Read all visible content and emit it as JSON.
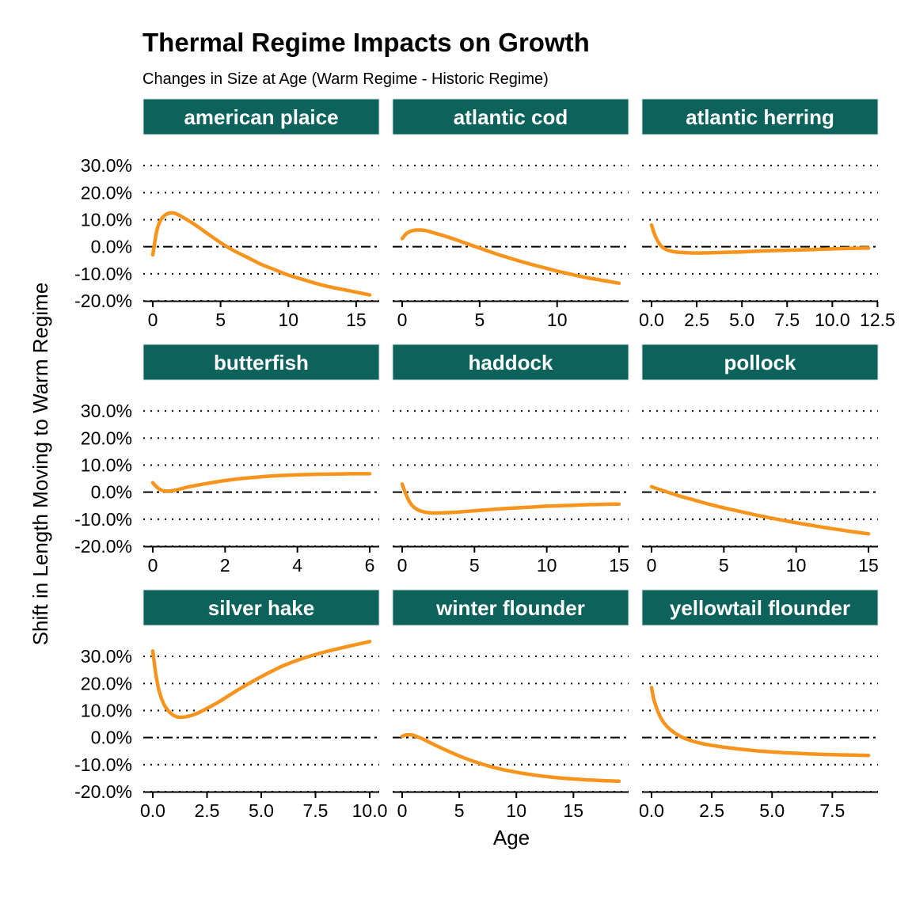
{
  "chart_data": {
    "type": "line",
    "title": "Thermal Regime Impacts on Growth",
    "subtitle": "Changes in Size at Age (Warm Regime - Historic Regime)",
    "xlabel": "Age",
    "ylabel": "Shift in Length Moving to Warm Regime",
    "y_unit": "percent",
    "ylim": [
      -20,
      40
    ],
    "y_ticks": [
      -20,
      -10,
      0,
      10,
      20,
      30
    ],
    "y_tick_labels": [
      "-20.0%",
      "-10.0%",
      "0.0%",
      "10.0%",
      "20.0%",
      "30.0%"
    ],
    "gridlines": "dotted horizontal",
    "reference_line": 0,
    "line_color": "#F7941D",
    "strip_color": "#0D635B",
    "panels": [
      {
        "name": "american plaice",
        "xlim": [
          0,
          16
        ],
        "x_ticks": [
          0,
          5,
          10,
          15
        ],
        "x_tick_labels": [
          "0",
          "5",
          "10",
          "15"
        ],
        "x": [
          0,
          0.3,
          0.6,
          1,
          1.5,
          2,
          3,
          4,
          5,
          6,
          7,
          8,
          9,
          10,
          11,
          12,
          13,
          14,
          15,
          16
        ],
        "y": [
          -3,
          6,
          10,
          12,
          12.5,
          11.5,
          8.5,
          5,
          1.5,
          -1.5,
          -4,
          -6.5,
          -8.5,
          -10.5,
          -12,
          -13.5,
          -14.8,
          -15.8,
          -16.8,
          -17.8
        ]
      },
      {
        "name": "atlantic cod",
        "xlim": [
          0,
          14
        ],
        "x_ticks": [
          0,
          5,
          10
        ],
        "x_tick_labels": [
          "0",
          "5",
          "10"
        ],
        "x": [
          0,
          0.3,
          0.7,
          1,
          1.5,
          2,
          3,
          4,
          5,
          6,
          7,
          8,
          9,
          10,
          11,
          12,
          13,
          14
        ],
        "y": [
          3,
          5,
          6,
          6.2,
          6,
          5.2,
          3.5,
          1.5,
          -0.5,
          -2.5,
          -4.3,
          -6,
          -7.5,
          -9,
          -10.3,
          -11.5,
          -12.5,
          -13.5
        ]
      },
      {
        "name": "atlantic herring",
        "xlim": [
          0,
          12
        ],
        "x_ticks": [
          0,
          2.5,
          5,
          7.5,
          10,
          12.5
        ],
        "x_tick_labels": [
          "0.0",
          "2.5",
          "5.0",
          "7.5",
          "10.0",
          "12.5"
        ],
        "x": [
          0,
          0.2,
          0.5,
          0.8,
          1.2,
          1.6,
          2.2,
          3,
          4,
          5,
          6,
          7,
          8,
          9,
          10,
          11,
          12
        ],
        "y": [
          8,
          4,
          0.5,
          -1,
          -1.8,
          -2.1,
          -2.3,
          -2.3,
          -2.1,
          -1.9,
          -1.6,
          -1.4,
          -1.2,
          -1,
          -0.8,
          -0.6,
          -0.5
        ]
      },
      {
        "name": "butterfish",
        "xlim": [
          0,
          6
        ],
        "x_ticks": [
          0,
          2,
          4,
          6
        ],
        "x_tick_labels": [
          "0",
          "2",
          "4",
          "6"
        ],
        "x": [
          0,
          0.1,
          0.2,
          0.3,
          0.45,
          0.6,
          0.8,
          1,
          1.5,
          2,
          2.5,
          3,
          3.5,
          4,
          4.5,
          5,
          5.5,
          6
        ],
        "y": [
          3.5,
          2,
          1,
          0.5,
          0.4,
          0.7,
          1.3,
          2,
          3.2,
          4.3,
          5.1,
          5.7,
          6.1,
          6.4,
          6.6,
          6.7,
          6.8,
          6.8
        ]
      },
      {
        "name": "haddock",
        "xlim": [
          0,
          15
        ],
        "x_ticks": [
          0,
          5,
          10,
          15
        ],
        "x_tick_labels": [
          "0",
          "5",
          "10",
          "15"
        ],
        "x": [
          0,
          0.2,
          0.5,
          0.8,
          1.2,
          1.7,
          2.3,
          3,
          4,
          5,
          6,
          7,
          8,
          9,
          10,
          11,
          12,
          13,
          14,
          15
        ],
        "y": [
          3,
          0,
          -3.5,
          -5.5,
          -6.8,
          -7.5,
          -7.7,
          -7.6,
          -7.3,
          -6.9,
          -6.5,
          -6.1,
          -5.8,
          -5.5,
          -5.2,
          -5,
          -4.8,
          -4.6,
          -4.5,
          -4.4
        ]
      },
      {
        "name": "pollock",
        "xlim": [
          0,
          15
        ],
        "x_ticks": [
          0,
          5,
          10,
          15
        ],
        "x_tick_labels": [
          "0",
          "5",
          "10",
          "15"
        ],
        "x": [
          0,
          1,
          2,
          3,
          4,
          5,
          6,
          7,
          8,
          9,
          10,
          11,
          12,
          13,
          14,
          15
        ],
        "y": [
          2,
          0.2,
          -1.5,
          -3,
          -4.5,
          -5.8,
          -7,
          -8.2,
          -9.3,
          -10.3,
          -11.3,
          -12.2,
          -13.1,
          -13.9,
          -14.7,
          -15.4
        ]
      },
      {
        "name": "silver hake",
        "xlim": [
          0,
          10
        ],
        "x_ticks": [
          0,
          2.5,
          5,
          7.5,
          10
        ],
        "x_tick_labels": [
          "0.0",
          "2.5",
          "5.0",
          "7.5",
          "10.0"
        ],
        "x": [
          0,
          0.15,
          0.3,
          0.5,
          0.7,
          0.9,
          1.1,
          1.3,
          1.6,
          2,
          2.5,
          3,
          3.5,
          4,
          5,
          6,
          7,
          8,
          9,
          10
        ],
        "y": [
          32,
          23,
          17,
          12.5,
          10,
          8.5,
          7.7,
          7.5,
          7.8,
          8.8,
          10.8,
          13,
          15.5,
          18,
          22.5,
          26.5,
          29.5,
          31.8,
          33.7,
          35.5
        ]
      },
      {
        "name": "winter flounder",
        "xlim": [
          0,
          19
        ],
        "x_ticks": [
          0,
          5,
          10,
          15
        ],
        "x_tick_labels": [
          "0",
          "5",
          "10",
          "15"
        ],
        "x": [
          0,
          0.4,
          0.8,
          1.2,
          1.8,
          2.5,
          3.5,
          5,
          6,
          7,
          8,
          9,
          10,
          11,
          12,
          13,
          14,
          15,
          16,
          17,
          18,
          19
        ],
        "y": [
          0.5,
          1,
          1,
          0.5,
          -0.5,
          -2,
          -4,
          -6.8,
          -8.4,
          -9.8,
          -11,
          -12,
          -12.8,
          -13.5,
          -14.1,
          -14.6,
          -15,
          -15.3,
          -15.6,
          -15.8,
          -16,
          -16.1
        ]
      },
      {
        "name": "yellowtail flounder",
        "xlim": [
          0,
          9
        ],
        "x_ticks": [
          0,
          2.5,
          5,
          7.5
        ],
        "x_tick_labels": [
          "0.0",
          "2.5",
          "5.0",
          "7.5"
        ],
        "x": [
          0,
          0.1,
          0.25,
          0.4,
          0.6,
          0.8,
          1,
          1.3,
          1.7,
          2.2,
          2.8,
          3.5,
          4.5,
          5.5,
          6.5,
          7.5,
          8.5,
          9
        ],
        "y": [
          18.5,
          14,
          10,
          7,
          4.5,
          2.8,
          1.5,
          0,
          -1.3,
          -2.4,
          -3.3,
          -4.1,
          -5,
          -5.6,
          -6,
          -6.3,
          -6.5,
          -6.6
        ]
      }
    ]
  }
}
